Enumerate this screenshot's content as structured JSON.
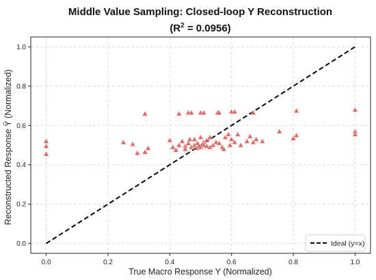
{
  "chart_data": {
    "type": "scatter",
    "title": "Middle Value Sampling: Closed-loop Y Reconstruction",
    "subtitle": {
      "prefix": "(R",
      "superscript": "2",
      "suffix": " = 0.0956)"
    },
    "xlabel": "True Macro Response Y (Normalized)",
    "ylabel": "Reconstructed Response Ŷ (Normalized)",
    "xlim": [
      -0.05,
      1.05
    ],
    "ylim": [
      -0.05,
      1.05
    ],
    "xticks": [
      "0.0",
      "0.2",
      "0.4",
      "0.6",
      "0.8",
      "1.0"
    ],
    "yticks": [
      "0.0",
      "0.2",
      "0.4",
      "0.6",
      "0.8",
      "1.0"
    ],
    "grid": true,
    "legend": {
      "position": "bottom-right",
      "entries": [
        "Ideal (y=x)"
      ]
    },
    "colors": {
      "points": "#d9534f",
      "ideal_line": "#000000",
      "grid": "#d0d0d0"
    },
    "series": [
      {
        "marker": "triangle",
        "points": [
          [
            0.0,
            0.52
          ],
          [
            0.0,
            0.495
          ],
          [
            0.0,
            0.455
          ],
          [
            0.25,
            0.515
          ],
          [
            0.28,
            0.505
          ],
          [
            0.295,
            0.46
          ],
          [
            0.32,
            0.66
          ],
          [
            0.32,
            0.465
          ],
          [
            0.33,
            0.485
          ],
          [
            0.4,
            0.525
          ],
          [
            0.41,
            0.49
          ],
          [
            0.42,
            0.475
          ],
          [
            0.43,
            0.5
          ],
          [
            0.43,
            0.66
          ],
          [
            0.44,
            0.52
          ],
          [
            0.45,
            0.495
          ],
          [
            0.45,
            0.48
          ],
          [
            0.46,
            0.51
          ],
          [
            0.46,
            0.665
          ],
          [
            0.465,
            0.53
          ],
          [
            0.47,
            0.49
          ],
          [
            0.47,
            0.665
          ],
          [
            0.48,
            0.5
          ],
          [
            0.48,
            0.53
          ],
          [
            0.49,
            0.51
          ],
          [
            0.49,
            0.485
          ],
          [
            0.5,
            0.49
          ],
          [
            0.5,
            0.54
          ],
          [
            0.5,
            0.665
          ],
          [
            0.51,
            0.515
          ],
          [
            0.51,
            0.5
          ],
          [
            0.51,
            0.665
          ],
          [
            0.52,
            0.525
          ],
          [
            0.52,
            0.495
          ],
          [
            0.53,
            0.49
          ],
          [
            0.53,
            0.54
          ],
          [
            0.54,
            0.5
          ],
          [
            0.55,
            0.515
          ],
          [
            0.555,
            0.665
          ],
          [
            0.56,
            0.51
          ],
          [
            0.56,
            0.665
          ],
          [
            0.57,
            0.49
          ],
          [
            0.575,
            0.48
          ],
          [
            0.58,
            0.54
          ],
          [
            0.59,
            0.555
          ],
          [
            0.595,
            0.5
          ],
          [
            0.6,
            0.53
          ],
          [
            0.6,
            0.67
          ],
          [
            0.61,
            0.515
          ],
          [
            0.61,
            0.67
          ],
          [
            0.62,
            0.555
          ],
          [
            0.63,
            0.5
          ],
          [
            0.65,
            0.52
          ],
          [
            0.66,
            0.545
          ],
          [
            0.67,
            0.515
          ],
          [
            0.67,
            0.665
          ],
          [
            0.68,
            0.53
          ],
          [
            0.7,
            0.52
          ],
          [
            0.755,
            0.57
          ],
          [
            0.8,
            0.535
          ],
          [
            0.81,
            0.55
          ],
          [
            0.81,
            0.675
          ],
          [
            1.0,
            0.57
          ],
          [
            1.0,
            0.555
          ],
          [
            1.0,
            0.68
          ]
        ]
      }
    ],
    "ideal_line": {
      "x": [
        0.0,
        1.0
      ],
      "y": [
        0.0,
        1.0
      ]
    }
  }
}
